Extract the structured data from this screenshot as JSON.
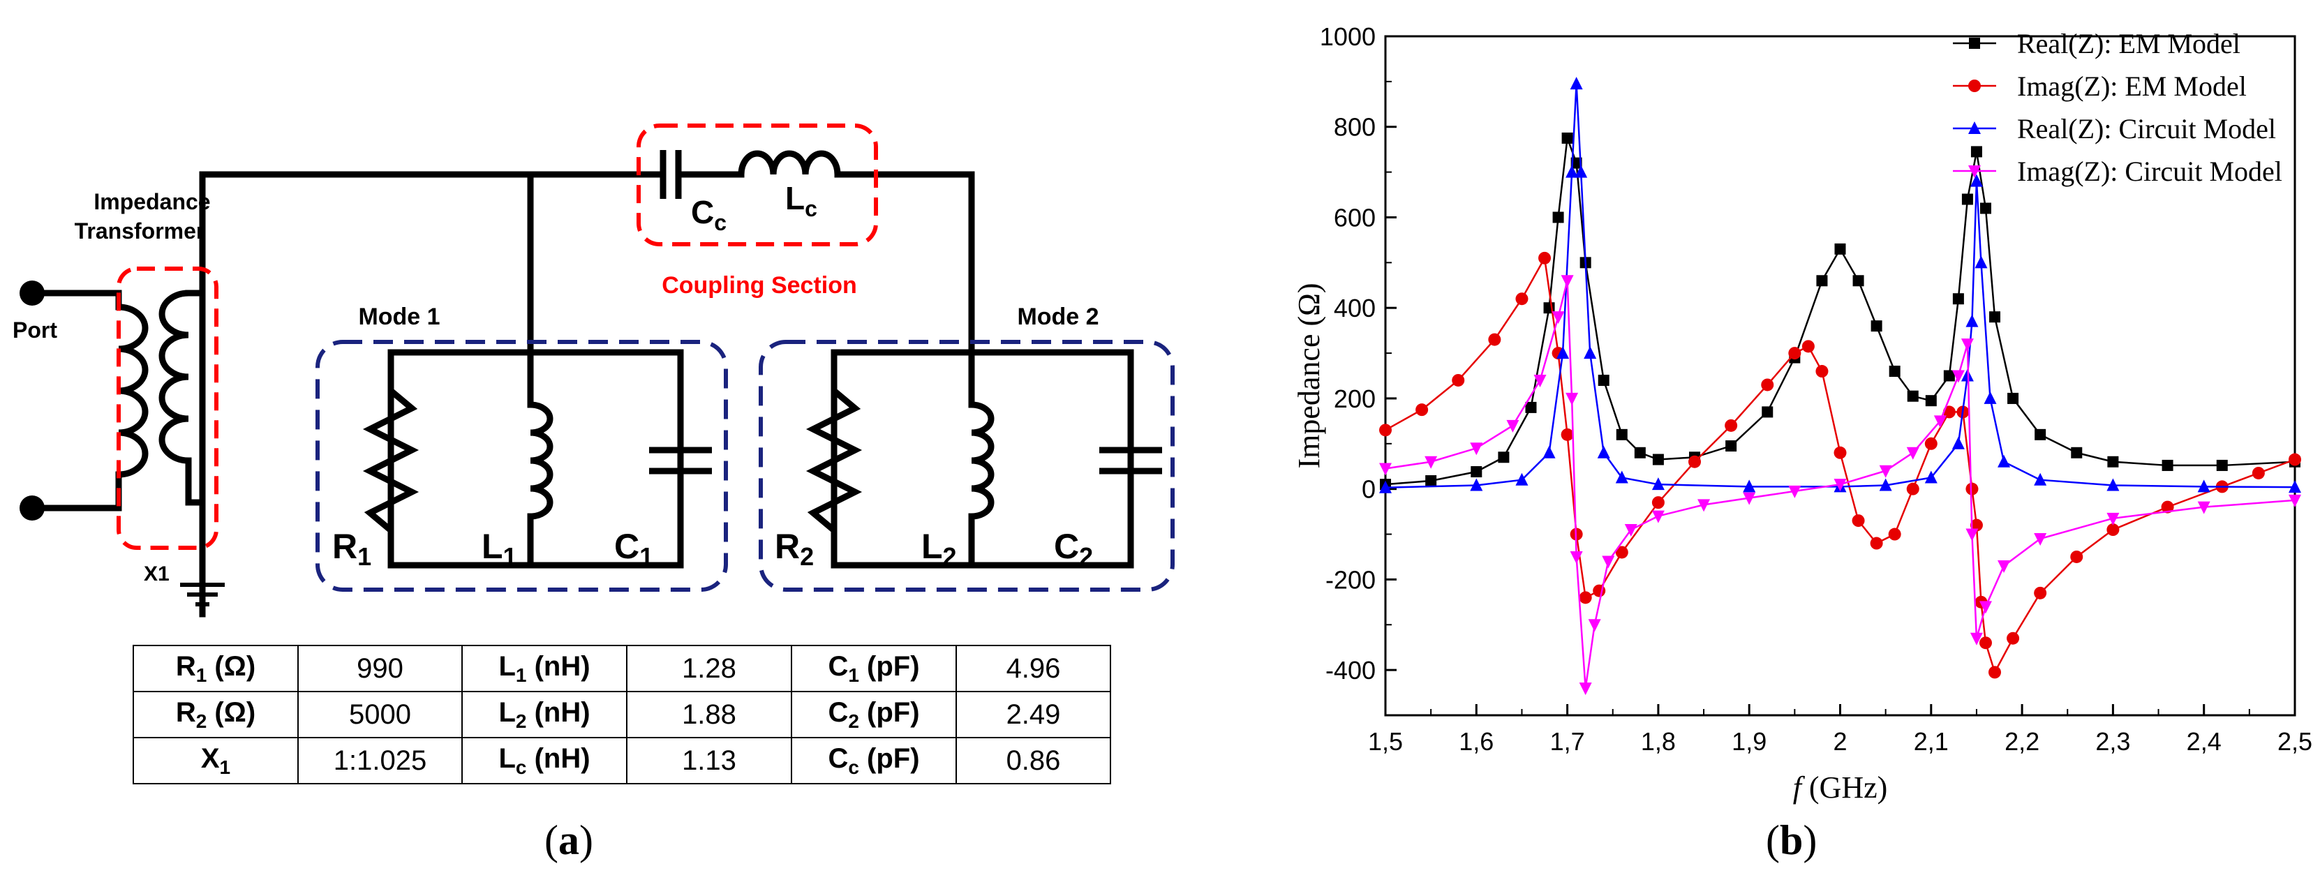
{
  "circuit": {
    "impedance_transformer_label": [
      "Impedance",
      "Transformer"
    ],
    "port_label": "Port",
    "transformer_label": "X1",
    "coupling_section_label": "Coupling Section",
    "mode1_label": "Mode 1",
    "mode2_label": "Mode 2",
    "components": {
      "cc": {
        "base": "C",
        "sub": "c"
      },
      "lc": {
        "base": "L",
        "sub": "c"
      },
      "r1": {
        "base": "R",
        "sub": "1"
      },
      "l1": {
        "base": "L",
        "sub": "1"
      },
      "c1": {
        "base": "C",
        "sub": "1"
      },
      "r2": {
        "base": "R",
        "sub": "2"
      },
      "l2": {
        "base": "L",
        "sub": "2"
      },
      "c2": {
        "base": "C",
        "sub": "2"
      }
    },
    "colors": {
      "wire": "#000000",
      "coupling_box": "#ff0000",
      "transformer_box": "#ff0000",
      "mode_box": "#1a237e"
    }
  },
  "table": {
    "rows": [
      [
        {
          "base": "R",
          "sub": "1",
          "unit": " (Ω)"
        },
        "990",
        {
          "base": "L",
          "sub": "1",
          "unit": " (nH)"
        },
        "1.28",
        {
          "base": "C",
          "sub": "1",
          "unit": " (pF)"
        },
        "4.96"
      ],
      [
        {
          "base": "R",
          "sub": "2",
          "unit": " (Ω)"
        },
        "5000",
        {
          "base": "L",
          "sub": "2",
          "unit": " (nH)"
        },
        "1.88",
        {
          "base": "C",
          "sub": "2",
          "unit": " (pF)"
        },
        "2.49"
      ],
      [
        {
          "base": "X",
          "sub": "1",
          "unit": ""
        },
        "1:1.025",
        {
          "base": "L",
          "sub": "c",
          "unit": " (nH)"
        },
        "1.13",
        {
          "base": "C",
          "sub": "c",
          "unit": " (pF)"
        },
        "0.86"
      ]
    ]
  },
  "panel_labels": {
    "a": "a",
    "b": "b"
  },
  "chart_data": {
    "type": "line",
    "xlabel_italic": "f",
    "xlabel_rest": " (GHz)",
    "ylabel": "Impedance (Ω)",
    "xlim": [
      1.5,
      2.5
    ],
    "ylim": [
      -500,
      1000
    ],
    "x_ticks": [
      "1,5",
      "1,6",
      "1,7",
      "1,8",
      "1,9",
      "2",
      "2,1",
      "2,2",
      "2,3",
      "2,4",
      "2,5"
    ],
    "x_tick_values": [
      1.5,
      1.6,
      1.7,
      1.8,
      1.9,
      2.0,
      2.1,
      2.2,
      2.3,
      2.4,
      2.5
    ],
    "y_ticks": [
      "-400",
      "-200",
      "0",
      "200",
      "400",
      "600",
      "800",
      "1000"
    ],
    "y_tick_values": [
      -400,
      -200,
      0,
      200,
      400,
      600,
      800,
      1000
    ],
    "grid": false,
    "legend_position": "top",
    "series": [
      {
        "name": "Real(Z): EM Model",
        "color": "#000000",
        "marker": "square",
        "points": [
          [
            1.5,
            10
          ],
          [
            1.55,
            18
          ],
          [
            1.6,
            38
          ],
          [
            1.63,
            70
          ],
          [
            1.66,
            180
          ],
          [
            1.68,
            400
          ],
          [
            1.69,
            600
          ],
          [
            1.7,
            775
          ],
          [
            1.71,
            720
          ],
          [
            1.72,
            500
          ],
          [
            1.74,
            240
          ],
          [
            1.76,
            120
          ],
          [
            1.78,
            80
          ],
          [
            1.8,
            65
          ],
          [
            1.84,
            70
          ],
          [
            1.88,
            95
          ],
          [
            1.92,
            170
          ],
          [
            1.95,
            290
          ],
          [
            1.98,
            460
          ],
          [
            2.0,
            530
          ],
          [
            2.02,
            460
          ],
          [
            2.04,
            360
          ],
          [
            2.06,
            260
          ],
          [
            2.08,
            205
          ],
          [
            2.1,
            195
          ],
          [
            2.12,
            250
          ],
          [
            2.13,
            420
          ],
          [
            2.14,
            640
          ],
          [
            2.15,
            745
          ],
          [
            2.16,
            620
          ],
          [
            2.17,
            380
          ],
          [
            2.19,
            200
          ],
          [
            2.22,
            120
          ],
          [
            2.26,
            80
          ],
          [
            2.3,
            60
          ],
          [
            2.36,
            52
          ],
          [
            2.42,
            52
          ],
          [
            2.5,
            60
          ]
        ]
      },
      {
        "name": "Imag(Z): EM Model",
        "color": "#e60000",
        "marker": "circle",
        "points": [
          [
            1.5,
            130
          ],
          [
            1.54,
            175
          ],
          [
            1.58,
            240
          ],
          [
            1.62,
            330
          ],
          [
            1.65,
            420
          ],
          [
            1.675,
            510
          ],
          [
            1.69,
            300
          ],
          [
            1.7,
            120
          ],
          [
            1.71,
            -100
          ],
          [
            1.72,
            -240
          ],
          [
            1.735,
            -225
          ],
          [
            1.76,
            -140
          ],
          [
            1.8,
            -30
          ],
          [
            1.84,
            60
          ],
          [
            1.88,
            140
          ],
          [
            1.92,
            230
          ],
          [
            1.95,
            300
          ],
          [
            1.965,
            315
          ],
          [
            1.98,
            260
          ],
          [
            2.0,
            80
          ],
          [
            2.02,
            -70
          ],
          [
            2.04,
            -120
          ],
          [
            2.06,
            -100
          ],
          [
            2.08,
            0
          ],
          [
            2.1,
            100
          ],
          [
            2.12,
            170
          ],
          [
            2.135,
            170
          ],
          [
            2.145,
            0
          ],
          [
            2.15,
            -80
          ],
          [
            2.155,
            -250
          ],
          [
            2.16,
            -340
          ],
          [
            2.17,
            -405
          ],
          [
            2.19,
            -330
          ],
          [
            2.22,
            -230
          ],
          [
            2.26,
            -150
          ],
          [
            2.3,
            -90
          ],
          [
            2.36,
            -40
          ],
          [
            2.42,
            5
          ],
          [
            2.46,
            35
          ],
          [
            2.5,
            65
          ]
        ]
      },
      {
        "name": "Real(Z): Circuit Model",
        "color": "#0000ff",
        "marker": "triangle-up",
        "points": [
          [
            1.5,
            3
          ],
          [
            1.6,
            8
          ],
          [
            1.65,
            20
          ],
          [
            1.68,
            80
          ],
          [
            1.695,
            300
          ],
          [
            1.705,
            700
          ],
          [
            1.71,
            895
          ],
          [
            1.715,
            700
          ],
          [
            1.725,
            300
          ],
          [
            1.74,
            80
          ],
          [
            1.76,
            25
          ],
          [
            1.8,
            10
          ],
          [
            1.9,
            5
          ],
          [
            2.0,
            5
          ],
          [
            2.05,
            8
          ],
          [
            2.1,
            25
          ],
          [
            2.13,
            100
          ],
          [
            2.14,
            250
          ],
          [
            2.145,
            370
          ],
          [
            2.15,
            680
          ],
          [
            2.155,
            500
          ],
          [
            2.165,
            200
          ],
          [
            2.18,
            60
          ],
          [
            2.22,
            20
          ],
          [
            2.3,
            8
          ],
          [
            2.4,
            5
          ],
          [
            2.5,
            4
          ]
        ]
      },
      {
        "name": "Imag(Z): Circuit Model",
        "color": "#ff00ff",
        "marker": "triangle-down",
        "points": [
          [
            1.5,
            45
          ],
          [
            1.55,
            60
          ],
          [
            1.6,
            90
          ],
          [
            1.64,
            140
          ],
          [
            1.67,
            240
          ],
          [
            1.69,
            380
          ],
          [
            1.7,
            460
          ],
          [
            1.705,
            200
          ],
          [
            1.71,
            -150
          ],
          [
            1.72,
            -440
          ],
          [
            1.73,
            -300
          ],
          [
            1.745,
            -160
          ],
          [
            1.77,
            -90
          ],
          [
            1.8,
            -60
          ],
          [
            1.85,
            -35
          ],
          [
            1.9,
            -20
          ],
          [
            1.95,
            -5
          ],
          [
            2.0,
            10
          ],
          [
            2.05,
            40
          ],
          [
            2.08,
            80
          ],
          [
            2.11,
            150
          ],
          [
            2.13,
            250
          ],
          [
            2.14,
            320
          ],
          [
            2.145,
            -100
          ],
          [
            2.15,
            -330
          ],
          [
            2.16,
            -260
          ],
          [
            2.18,
            -170
          ],
          [
            2.22,
            -110
          ],
          [
            2.3,
            -65
          ],
          [
            2.4,
            -40
          ],
          [
            2.5,
            -25
          ]
        ]
      }
    ]
  }
}
